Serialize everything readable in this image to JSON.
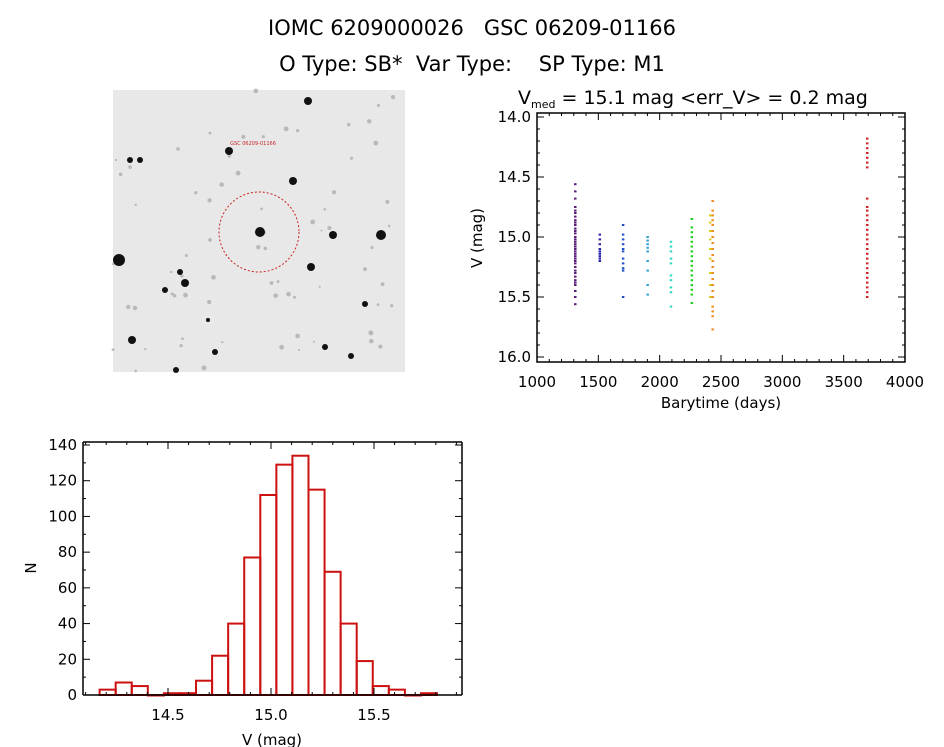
{
  "header": {
    "title": "IOMC 6209000026   GSC 06209-01166",
    "subtitle": "O Type: SB*  Var Type:    SP Type: M1"
  },
  "finder_image": {
    "label_target": "GSC 06209-01166",
    "marker_color": "#cc2222"
  },
  "chart_data": [
    {
      "type": "scatter",
      "title_main": "V",
      "title_sub": "med",
      "title_rest": " = 15.1 mag <err_V> = 0.2 mag",
      "xlabel": "Barytime (days)",
      "ylabel": "V (mag)",
      "xlim": [
        1000,
        4000
      ],
      "ylim": [
        16.0,
        14.0
      ],
      "y_inverted": true,
      "xticks": [
        1000,
        1500,
        2000,
        2500,
        3000,
        3500,
        4000
      ],
      "yticks": [
        "14.0",
        "14.5",
        "15.0",
        "15.5",
        "16.0"
      ],
      "series": [
        {
          "x": 1310,
          "color": "#5a1878",
          "y": [
            14.56,
            14.62,
            14.68,
            14.75,
            14.78,
            14.8,
            14.83,
            14.86,
            14.88,
            14.9,
            14.93,
            14.95,
            14.97,
            15.0,
            15.02,
            15.04,
            15.06,
            15.08,
            15.1,
            15.12,
            15.14,
            15.16,
            15.18,
            15.2,
            15.22,
            15.25,
            15.28,
            15.3,
            15.33,
            15.36,
            15.38,
            15.4,
            15.45,
            15.5,
            15.56
          ]
        },
        {
          "x": 1510,
          "color": "#2a22a8",
          "y": [
            14.98,
            15.02,
            15.06,
            15.1,
            15.12,
            15.14,
            15.16,
            15.18,
            15.2
          ]
        },
        {
          "x": 1700,
          "color": "#2050c8",
          "y": [
            14.9,
            14.98,
            15.02,
            15.06,
            15.1,
            15.12,
            15.18,
            15.22,
            15.26,
            15.28,
            15.5
          ]
        },
        {
          "x": 1900,
          "color": "#30a0d0",
          "y": [
            15.0,
            15.03,
            15.06,
            15.09,
            15.12,
            15.2,
            15.28,
            15.4,
            15.48
          ]
        },
        {
          "x": 2090,
          "color": "#30d8c8",
          "y": [
            15.04,
            15.08,
            15.12,
            15.18,
            15.22,
            15.32,
            15.36,
            15.42,
            15.46,
            15.58
          ]
        },
        {
          "x": 2260,
          "color": "#22d022",
          "y": [
            14.85,
            14.92,
            14.96,
            15.0,
            15.04,
            15.08,
            15.12,
            15.16,
            15.2,
            15.24,
            15.28,
            15.32,
            15.36,
            15.4,
            15.44,
            15.48,
            15.55
          ]
        },
        {
          "x": 2410,
          "color": "#d8d020",
          "y": [
            14.82,
            14.88,
            14.95,
            15.02,
            15.1,
            15.18,
            15.3,
            15.4,
            15.5
          ]
        },
        {
          "x": 2430,
          "color": "#f08a20",
          "y": [
            14.7,
            14.78,
            14.82,
            14.86,
            14.9,
            14.95,
            15.0,
            15.05,
            15.1,
            15.15,
            15.2,
            15.25,
            15.3,
            15.35,
            15.4,
            15.45,
            15.5,
            15.58,
            15.62,
            15.66,
            15.77
          ]
        },
        {
          "x": 3690,
          "color": "#d42020",
          "y": [
            14.18,
            14.22,
            14.26,
            14.3,
            14.34,
            14.38,
            14.42,
            14.68,
            14.75,
            14.78,
            14.82,
            14.86,
            14.9,
            14.94,
            14.98,
            15.02,
            15.06,
            15.1,
            15.14,
            15.18,
            15.22,
            15.26,
            15.3,
            15.34,
            15.38,
            15.42,
            15.46,
            15.5
          ]
        }
      ]
    },
    {
      "type": "bar",
      "subtype": "histogram",
      "xlabel": "V (mag)",
      "ylabel": "N",
      "xlim": [
        14.09,
        15.93
      ],
      "ylim": [
        0,
        140
      ],
      "xticks": [
        "14.5",
        "15.0",
        "15.5"
      ],
      "yticks": [
        "0",
        "20",
        "40",
        "60",
        "80",
        "100",
        "120",
        "140"
      ],
      "bar_color": "#cc1111",
      "bin_start": 14.168,
      "bin_width": 0.078,
      "values": [
        3,
        7,
        5,
        0,
        1,
        1,
        8,
        22,
        40,
        77,
        112,
        129,
        134,
        115,
        69,
        40,
        19,
        5,
        3,
        0,
        1
      ]
    }
  ]
}
